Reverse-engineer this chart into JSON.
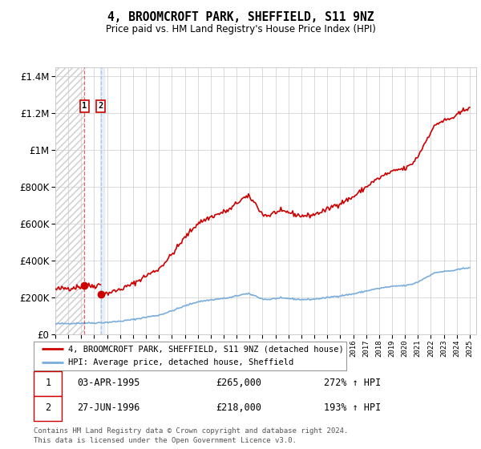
{
  "title": "4, BROOMCROFT PARK, SHEFFIELD, S11 9NZ",
  "subtitle": "Price paid vs. HM Land Registry's House Price Index (HPI)",
  "legend_line1": "4, BROOMCROFT PARK, SHEFFIELD, S11 9NZ (detached house)",
  "legend_line2": "HPI: Average price, detached house, Sheffield",
  "footer": "Contains HM Land Registry data © Crown copyright and database right 2024.\nThis data is licensed under the Open Government Licence v3.0.",
  "sale1_date_str": "03-APR-1995",
  "sale1_price": 265000,
  "sale1_hpi_pct": "272% ↑ HPI",
  "sale1_date_num": 1995.25,
  "sale2_date_str": "27-JUN-1996",
  "sale2_price": 218000,
  "sale2_hpi_pct": "193% ↑ HPI",
  "sale2_date_num": 1996.5,
  "hpi_color": "#7aaddc",
  "property_color": "#cc0000",
  "ylim_min": 0,
  "ylim_max": 1450000,
  "xlim_min": 1993.0,
  "xlim_max": 2025.5,
  "grid_color": "#cccccc",
  "hpi_at_sale1": 57500,
  "hpi_at_sale2": 62000
}
